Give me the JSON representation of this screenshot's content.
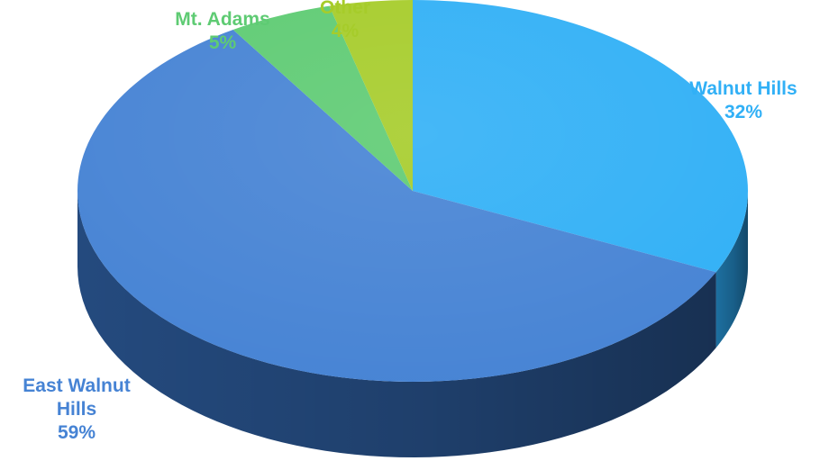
{
  "chart_data": {
    "type": "pie",
    "style": "3d",
    "title": "",
    "legend": "none",
    "slices": [
      {
        "label_lines": [
          "Walnut Hills"
        ],
        "percent_label": "32%",
        "value": 32,
        "color": "#31b0f6",
        "dark_color": "#1d6fa0"
      },
      {
        "label_lines": [
          "East Walnut",
          "Hills"
        ],
        "percent_label": "59%",
        "value": 59,
        "color": "#4683d4",
        "dark_color": "#244a7e"
      },
      {
        "label_lines": [
          "Mt. Adams"
        ],
        "percent_label": "5%",
        "value": 5,
        "color": "#5ecb73",
        "dark_color": "#3a8a49"
      },
      {
        "label_lines": [
          "Other"
        ],
        "percent_label": "4%",
        "value": 4,
        "color": "#a6cc2a",
        "dark_color": "#6e8a17"
      }
    ]
  }
}
